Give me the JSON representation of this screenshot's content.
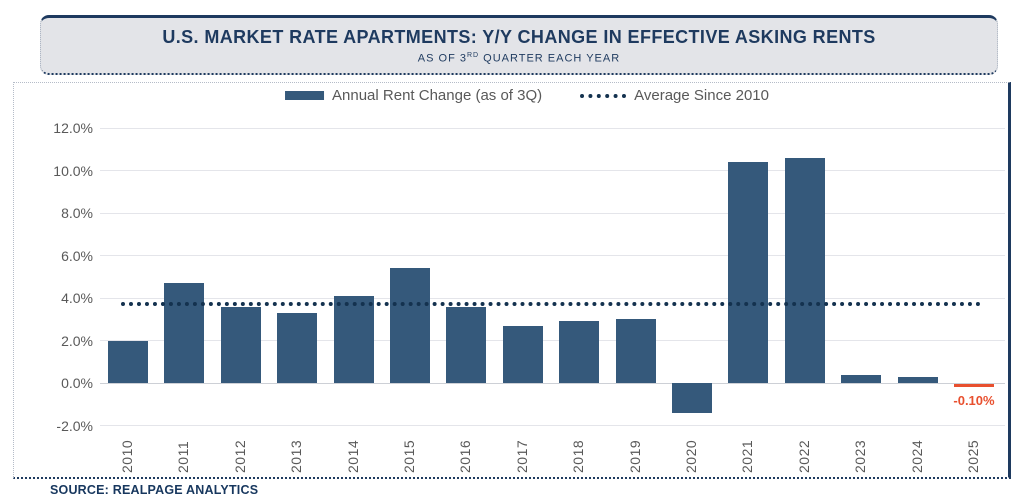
{
  "header": {
    "title": "U.S. MARKET RATE APARTMENTS: Y/Y CHANGE IN EFFECTIVE ASKING RENTS",
    "subtitle_prefix": "AS OF 3",
    "subtitle_sup": "RD",
    "subtitle_suffix": " QUARTER EACH YEAR"
  },
  "legend": {
    "series1": "Annual Rent Change (as of 3Q)",
    "series2": "Average Since 2010"
  },
  "source": "SOURCE: REALPAGE ANALYTICS",
  "chart_data": {
    "type": "bar",
    "title": "U.S. MARKET RATE APARTMENTS: Y/Y CHANGE IN EFFECTIVE ASKING RENTS",
    "subtitle": "AS OF 3RD QUARTER EACH YEAR",
    "categories": [
      "2010",
      "2011",
      "2012",
      "2013",
      "2014",
      "2015",
      "2016",
      "2017",
      "2018",
      "2019",
      "2020",
      "2021",
      "2022",
      "2023",
      "2024",
      "2025"
    ],
    "series": [
      {
        "name": "Annual Rent Change (as of 3Q)",
        "type": "bar",
        "values": [
          2.0,
          4.7,
          3.6,
          3.3,
          4.1,
          5.4,
          3.6,
          2.7,
          2.9,
          3.0,
          -1.4,
          10.4,
          10.6,
          0.4,
          0.3,
          -0.1
        ]
      },
      {
        "name": "Average Since 2010",
        "type": "line",
        "value": 3.7
      }
    ],
    "highlight": {
      "category": "2025",
      "value": -0.1,
      "label": "-0.10%"
    },
    "ylim": [
      -2.0,
      12.0
    ],
    "ytick_step": 2.0,
    "yticks": [
      "12.0%",
      "10.0%",
      "8.0%",
      "6.0%",
      "4.0%",
      "2.0%",
      "0.0%",
      "-2.0%"
    ],
    "grid": true,
    "legend_position": "top"
  },
  "colors": {
    "bar": "#35597B",
    "avg-line": "#14324F",
    "highlight": "#E8502F",
    "navy": "#1E3A5F",
    "axis-text": "#595959",
    "grid-line": "#E4E5EA",
    "zero-line": "#CDD0D6",
    "header-bg": "#E3E4E8",
    "source-text": "#17375E"
  }
}
